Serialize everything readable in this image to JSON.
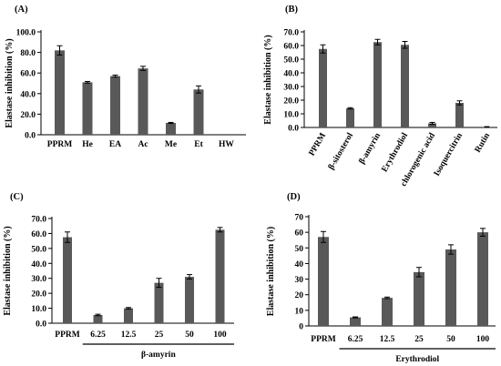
{
  "colors": {
    "bar": "#595959",
    "axis": "#000000",
    "error": "#000000"
  },
  "chart_data": [
    {
      "type": "bar",
      "panel_label": "(A)",
      "ylabel": "Elastase inhibition  (%)",
      "categories": [
        "PPRM",
        "He",
        "EA",
        "Ac",
        "Me",
        "Et",
        "HW"
      ],
      "values": [
        82,
        51,
        57,
        64.5,
        11.5,
        44,
        0
      ],
      "errors": [
        4.5,
        0.8,
        1,
        2,
        0.5,
        3.5,
        0
      ],
      "ylim": [
        0,
        100
      ],
      "yticks": [
        "0.0",
        "20.0",
        "40.0",
        "60.0",
        "80.0",
        "100.0"
      ],
      "group_label": "",
      "rotated_labels": false
    },
    {
      "type": "bar",
      "panel_label": "(B)",
      "ylabel": "Elastase inhibition  (%)",
      "categories": [
        "PPRM",
        "β-sitosterol",
        "β-amyrin",
        "Erythrodiol",
        "chlorogenic acid",
        "Isoquercitrin",
        "Rutin"
      ],
      "values": [
        57.5,
        14,
        62.5,
        60.5,
        3,
        18,
        0.3
      ],
      "errors": [
        3,
        0.5,
        2,
        2.5,
        0.7,
        1.5,
        0.3
      ],
      "ylim": [
        0,
        70
      ],
      "yticks": [
        "0.0",
        "10.0",
        "20.0",
        "30.0",
        "40.0",
        "50.0",
        "60.0",
        "70.0"
      ],
      "group_label": "",
      "rotated_labels": true
    },
    {
      "type": "bar",
      "panel_label": "(C)",
      "ylabel": "Elastase inhibition  (%)",
      "categories": [
        "PPRM",
        "6.25",
        "12.5",
        "25",
        "50",
        "100"
      ],
      "values": [
        57.5,
        5.5,
        10,
        27,
        31,
        62.5
      ],
      "errors": [
        3.5,
        0.5,
        0.5,
        3,
        1.5,
        1.5
      ],
      "ylim": [
        0,
        70
      ],
      "yticks": [
        "0.0",
        "10.0",
        "20.0",
        "30.0",
        "40.0",
        "50.0",
        "60.0",
        "70.0"
      ],
      "group_label": "β-amyrin",
      "rotated_labels": false
    },
    {
      "type": "bar",
      "panel_label": "(D)",
      "ylabel": "Elastase inhibition  (%)",
      "categories": [
        "PPRM",
        "6.25",
        "12.5",
        "25",
        "50",
        "100"
      ],
      "values": [
        57,
        5.5,
        18,
        34.5,
        49,
        60
      ],
      "errors": [
        3.5,
        0.3,
        0.5,
        3,
        3,
        2.5
      ],
      "ylim": [
        0,
        70
      ],
      "yticks": [
        "0",
        "10",
        "20",
        "30",
        "40",
        "50",
        "60",
        "70"
      ],
      "group_label": "Erythrodiol",
      "rotated_labels": false
    }
  ]
}
